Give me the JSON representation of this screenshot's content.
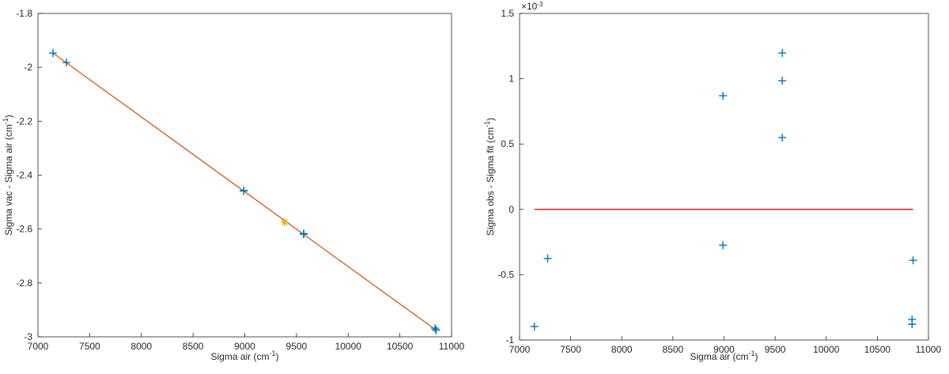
{
  "chart_data": [
    {
      "type": "scatter-line",
      "xlabel": [
        "Sigma air (cm",
        "-1",
        ")"
      ],
      "ylabel": [
        "Sigma vac - Sigma air (cm",
        "-1",
        ")"
      ],
      "xlim": [
        7000,
        11000
      ],
      "xticks": [
        7000,
        7500,
        8000,
        8500,
        9000,
        9500,
        10000,
        10500,
        11000
      ],
      "ylim": [
        -3,
        -1.8
      ],
      "yticks": [
        -3,
        -2.8,
        -2.6,
        -2.4,
        -2.2,
        -2,
        -1.8
      ],
      "series": [
        {
          "marker": "line",
          "color": "#d95319",
          "x": [
            7145,
            10850
          ],
          "values": [
            -1.947,
            -2.975
          ]
        },
        {
          "marker": "+",
          "color": "#0072bd",
          "x": [
            7145,
            7275,
            8990,
            8990,
            9570,
            9570,
            9570,
            10840,
            10850,
            10850
          ],
          "values": [
            -1.947,
            -1.982,
            -2.457,
            -2.459,
            -2.617,
            -2.618,
            -2.619,
            -2.968,
            -2.974,
            -2.975
          ]
        },
        {
          "marker": "*",
          "color": "#edb120",
          "x": [
            9386
          ],
          "values": [
            -2.575
          ]
        }
      ]
    },
    {
      "type": "scatter-line",
      "xlabel": [
        "Sigma air (cm",
        "-1",
        ")"
      ],
      "ylabel": [
        "Sigma obs - Sigma fit (cm",
        "-1",
        ")"
      ],
      "y_multiplier": [
        "×10",
        "-3"
      ],
      "xlim": [
        7000,
        11000
      ],
      "xticks": [
        7000,
        7500,
        8000,
        8500,
        9000,
        9500,
        10000,
        10500,
        11000
      ],
      "ylim": [
        -1,
        1.5
      ],
      "yticks": [
        -1,
        -0.5,
        0,
        0.5,
        1,
        1.5
      ],
      "series": [
        {
          "marker": "line",
          "color": "#ff0000",
          "x": [
            7145,
            10850
          ],
          "values": [
            0,
            0
          ]
        },
        {
          "marker": "+",
          "color": "#0072bd",
          "x": [
            7145,
            7275,
            8990,
            8990,
            9570,
            9570,
            9570,
            10850,
            10840,
            10840
          ],
          "values": [
            -0.897,
            -0.376,
            0.87,
            -0.274,
            1.197,
            0.985,
            0.55,
            -0.39,
            -0.843,
            -0.879
          ]
        }
      ]
    }
  ]
}
